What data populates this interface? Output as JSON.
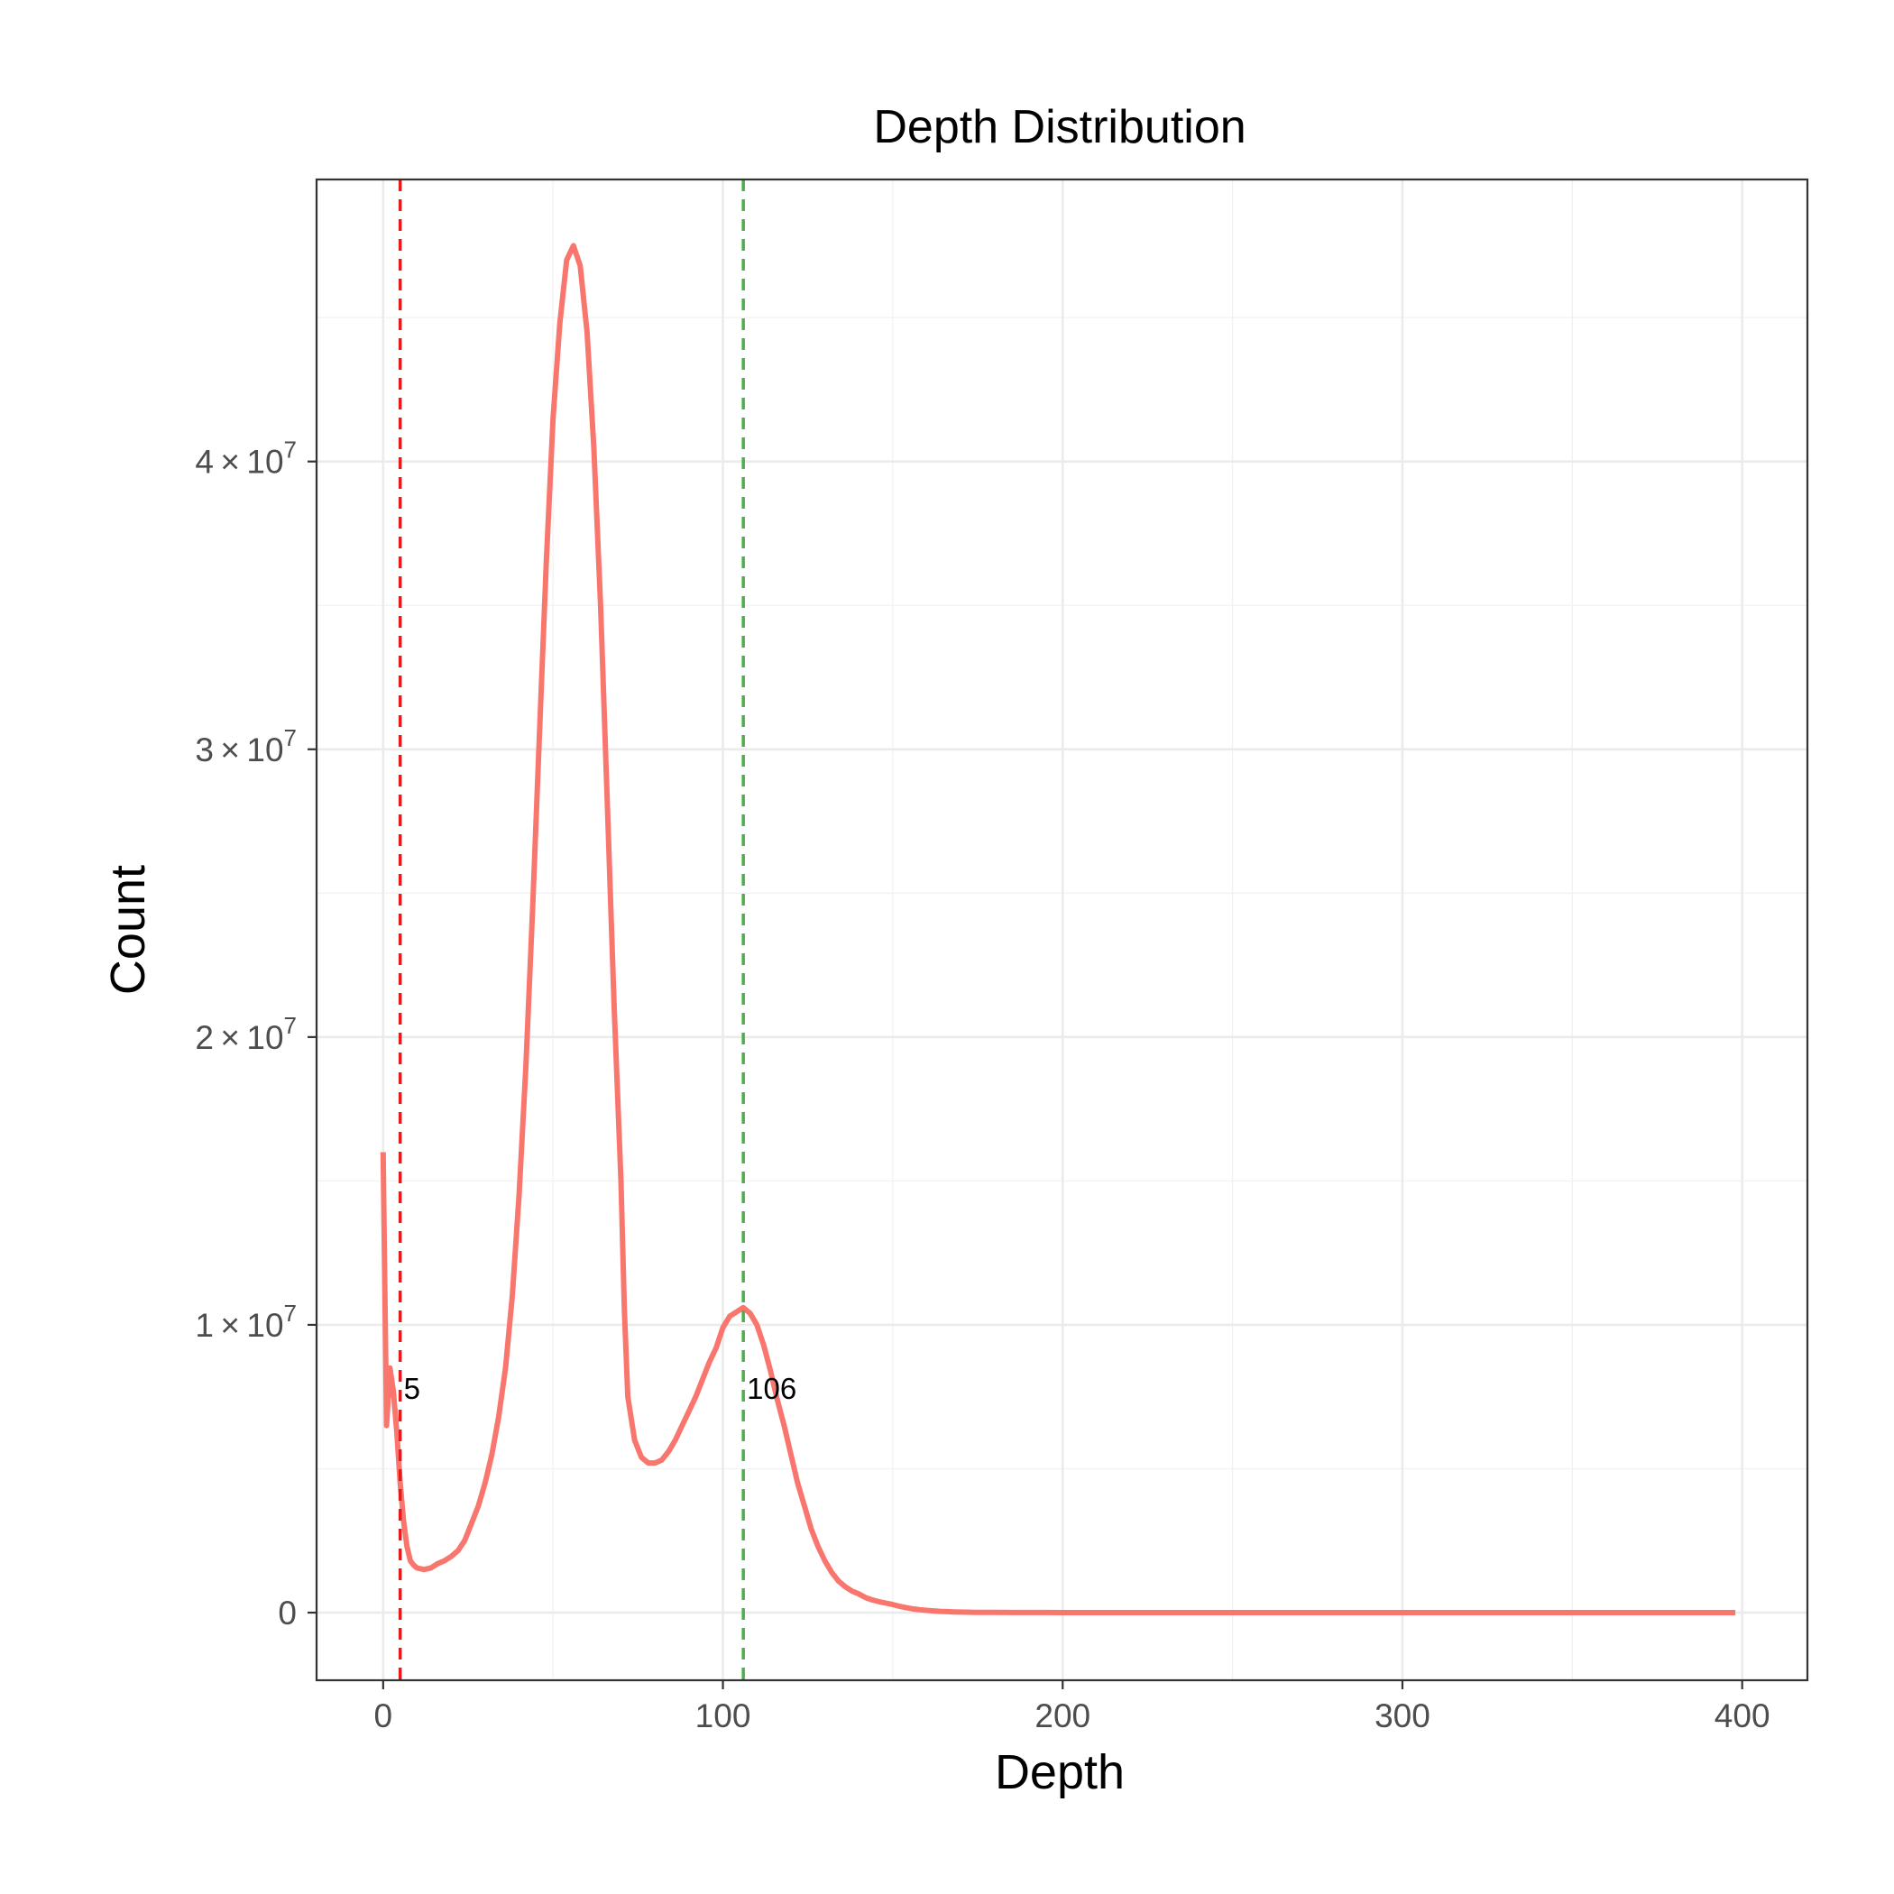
{
  "chart_data": {
    "type": "line",
    "title": "Depth Distribution",
    "xlabel": "Depth",
    "ylabel": "Count",
    "xlim": [
      -19.6,
      419.2
    ],
    "ylim": [
      -2350000,
      49800000
    ],
    "x_ticks": [
      0,
      100,
      200,
      300,
      400
    ],
    "x_tick_labels": [
      "0",
      "100",
      "200",
      "300",
      "400"
    ],
    "y_ticks": [
      0,
      10000000,
      20000000,
      30000000,
      40000000
    ],
    "y_tick_labels": [
      {
        "mantissa": "0",
        "exponent": ""
      },
      {
        "mantissa": "1",
        "exponent": "7"
      },
      {
        "mantissa": "2",
        "exponent": "7"
      },
      {
        "mantissa": "3",
        "exponent": "7"
      },
      {
        "mantissa": "4",
        "exponent": "7"
      }
    ],
    "grid": true,
    "colors": {
      "line": "#F8766D",
      "cutoff_low": "#E41A1C",
      "cutoff_high": "#4DAF4A",
      "grid_major": "#EBEBEB",
      "grid_minor": "#F2F2F2",
      "border": "#333333"
    },
    "series": [
      {
        "x": [
          0,
          1,
          2,
          3,
          4,
          5,
          6,
          7,
          8,
          9,
          10,
          12,
          14,
          16,
          18,
          20,
          22,
          24,
          26,
          28,
          30,
          32,
          34,
          36,
          38,
          40,
          42,
          44,
          46,
          48,
          50,
          52,
          54,
          56,
          58,
          60,
          62,
          64,
          66,
          68,
          70,
          71,
          72,
          74,
          76,
          78,
          80,
          82,
          84,
          86,
          88,
          90,
          92,
          94,
          96,
          98,
          100,
          102,
          104,
          106,
          108,
          110,
          112,
          114,
          116,
          118,
          120,
          122,
          124,
          126,
          128,
          130,
          132,
          134,
          136,
          138,
          140,
          142,
          144,
          146,
          148,
          150,
          152,
          154,
          156,
          158,
          160,
          162,
          164,
          166,
          168,
          170,
          172,
          174,
          176,
          178,
          180,
          185,
          190,
          195,
          200,
          210,
          220,
          230,
          240,
          250,
          260,
          280,
          300,
          320,
          340,
          360,
          380,
          398
        ],
        "y": [
          16000000,
          6500000,
          8500000,
          7700000,
          6300000,
          4500000,
          3200000,
          2300000,
          1800000,
          1650000,
          1550000,
          1500000,
          1550000,
          1700000,
          1800000,
          1950000,
          2150000,
          2500000,
          3100000,
          3700000,
          4500000,
          5500000,
          6800000,
          8500000,
          11000000,
          14500000,
          19000000,
          24500000,
          30500000,
          36500000,
          41500000,
          44800000,
          47000000,
          47500000,
          46800000,
          44500000,
          40500000,
          35000000,
          28000000,
          21000000,
          15000000,
          10500000,
          7500000,
          6000000,
          5400000,
          5200000,
          5200000,
          5300000,
          5600000,
          6000000,
          6500000,
          7000000,
          7500000,
          8100000,
          8700000,
          9200000,
          9900000,
          10300000,
          10450000,
          10600000,
          10400000,
          10000000,
          9300000,
          8400000,
          7400000,
          6500000,
          5500000,
          4500000,
          3700000,
          2900000,
          2300000,
          1800000,
          1400000,
          1100000,
          900000,
          750000,
          650000,
          520000,
          440000,
          380000,
          330000,
          280000,
          220000,
          170000,
          130000,
          100000,
          80000,
          60000,
          45000,
          35000,
          25000,
          20000,
          15000,
          10000,
          8000,
          7000,
          6000,
          5000,
          4000,
          3000,
          2000,
          1500,
          1000,
          800,
          600,
          500,
          400,
          300,
          200,
          150,
          100,
          80,
          50,
          30
        ],
        "color": "#F8766D"
      }
    ],
    "vlines": [
      {
        "x": 5,
        "label": "5",
        "label_y": 7800000,
        "color": "#E41A1C",
        "style": "dashed"
      },
      {
        "x": 106,
        "label": "106",
        "label_y": 7800000,
        "color": "#4DAF4A",
        "style": "dashed"
      }
    ]
  }
}
